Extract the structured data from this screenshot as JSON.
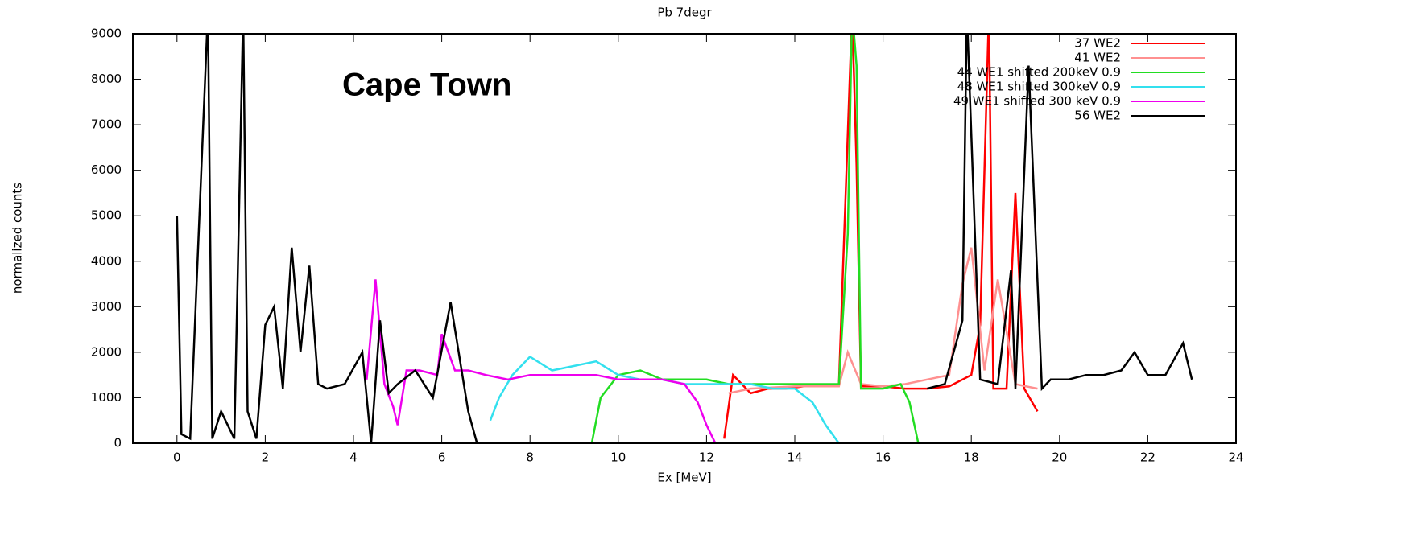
{
  "chart_data": {
    "type": "line",
    "title": "Pb 7degr",
    "x_label": "Ex [MeV]",
    "y_label": "normalized counts",
    "annotation": "Cape Town",
    "annotation_color": "#ff0000",
    "xlim": [
      -1,
      24
    ],
    "xticks": [
      0,
      2,
      4,
      6,
      8,
      10,
      12,
      14,
      16,
      18,
      20,
      22,
      24
    ],
    "ylim": [
      0,
      9000
    ],
    "yticks": [
      0,
      1000,
      2000,
      3000,
      4000,
      5000,
      6000,
      7000,
      8000,
      9000
    ],
    "grid": false,
    "legend": "top-right",
    "series": [
      {
        "name": "37 WE2",
        "color": "#ff0000",
        "x": [
          12.4,
          12.6,
          13.0,
          13.4,
          13.8,
          14.2,
          14.6,
          15.0,
          15.3,
          15.4,
          15.5,
          16.0,
          16.5,
          17.0,
          17.5,
          18.0,
          18.2,
          18.4,
          18.5,
          18.8,
          19.0,
          19.2,
          19.5
        ],
        "values": [
          100,
          1500,
          1100,
          1200,
          1200,
          1250,
          1250,
          1300,
          9500,
          6100,
          1250,
          1250,
          1200,
          1200,
          1250,
          1500,
          2600,
          9500,
          1200,
          1200,
          5500,
          1200,
          700
        ]
      },
      {
        "name": "41 WE2",
        "color": "#ff9090",
        "x": [
          12.5,
          13,
          14,
          15,
          15.2,
          15.5,
          16,
          16.5,
          17,
          17.5,
          17.8,
          18.0,
          18.3,
          18.6,
          19,
          19.5
        ],
        "values": [
          1100,
          1200,
          1250,
          1250,
          2000,
          1300,
          1250,
          1300,
          1400,
          1500,
          3500,
          4300,
          1600,
          3600,
          1300,
          1200
        ]
      },
      {
        "name": "44 WE1 shifted 200keV 0.9",
        "color": "#22dd22",
        "x": [
          9.4,
          9.6,
          10,
          10.5,
          11,
          11.5,
          12,
          12.5,
          13,
          13.5,
          14,
          14.5,
          15,
          15.2,
          15.3,
          15.4,
          15.5,
          16,
          16.4,
          16.6,
          16.8
        ],
        "values": [
          0,
          1000,
          1500,
          1600,
          1400,
          1400,
          1400,
          1300,
          1300,
          1300,
          1300,
          1300,
          1300,
          4600,
          9500,
          8300,
          1200,
          1200,
          1300,
          900,
          0
        ]
      },
      {
        "name": "48 WE1 shifted 300keV 0.9",
        "color": "#33e0ee",
        "x": [
          7.1,
          7.3,
          7.6,
          7.8,
          8.0,
          8.5,
          9.0,
          9.5,
          10,
          10.5,
          11,
          11.5,
          12,
          12.5,
          13,
          13.5,
          14,
          14.4,
          14.7,
          15.0
        ],
        "values": [
          500,
          1000,
          1500,
          1700,
          1900,
          1600,
          1700,
          1800,
          1500,
          1400,
          1400,
          1300,
          1300,
          1300,
          1300,
          1200,
          1200,
          900,
          400,
          0
        ]
      },
      {
        "name": "49 WE1 shifted 300 keV 0.9",
        "color": "#ee00ee",
        "x": [
          4.3,
          4.5,
          4.7,
          4.9,
          5.0,
          5.2,
          5.5,
          5.9,
          6.0,
          6.3,
          6.6,
          7.0,
          7.5,
          8.0,
          8.5,
          9.0,
          9.5,
          10,
          10.5,
          11,
          11.5,
          11.8,
          12.0,
          12.2
        ],
        "values": [
          1400,
          3600,
          1300,
          800,
          400,
          1600,
          1600,
          1500,
          2400,
          1600,
          1600,
          1500,
          1400,
          1500,
          1500,
          1500,
          1500,
          1400,
          1400,
          1400,
          1300,
          900,
          400,
          0
        ]
      },
      {
        "name": "56 WE2",
        "color": "#000000",
        "x": [
          0,
          0.1,
          0.3,
          0.7,
          0.8,
          1.0,
          1.3,
          1.5,
          1.6,
          1.8,
          2.0,
          2.2,
          2.4,
          2.6,
          2.8,
          3.0,
          3.2,
          3.4,
          3.8,
          4.2,
          4.4,
          4.6,
          4.8,
          5.0,
          5.4,
          5.8,
          6.2,
          6.6,
          6.8,
          7.0,
          17,
          17.4,
          17.8,
          17.9,
          18.2,
          18.6,
          18.9,
          19.0,
          19.3,
          19.6,
          19.8,
          20.2,
          20.6,
          21.0,
          21.4,
          21.7,
          22.0,
          22.4,
          22.8,
          23.0
        ],
        "values": [
          5000,
          200,
          100,
          9500,
          100,
          700,
          100,
          9500,
          700,
          100,
          2600,
          3000,
          1200,
          4300,
          2000,
          3900,
          1300,
          1200,
          1300,
          2000,
          0,
          2700,
          1100,
          1300,
          1600,
          1000,
          3100,
          700,
          0,
          null,
          1200,
          1300,
          2700,
          9500,
          1400,
          1300,
          3800,
          1200,
          8300,
          1200,
          1400,
          1400,
          1500,
          1500,
          1600,
          2000,
          1500,
          1500,
          2200,
          1400
        ]
      }
    ]
  }
}
